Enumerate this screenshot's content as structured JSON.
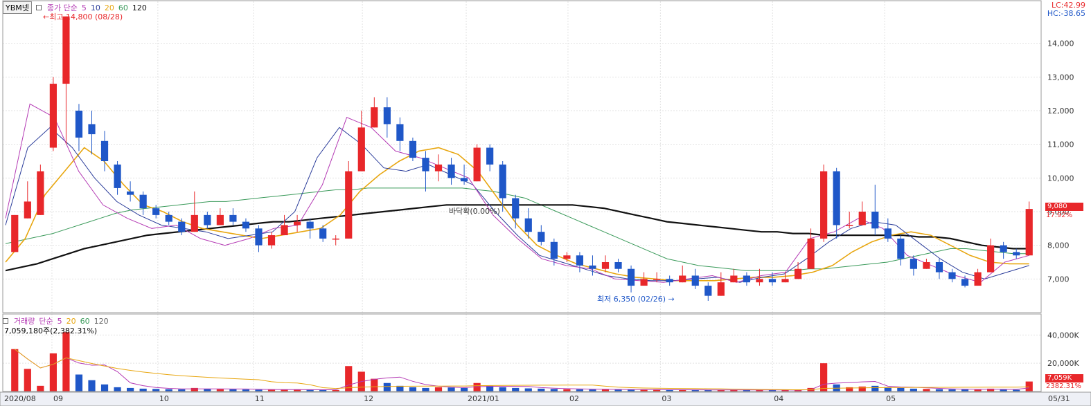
{
  "header": {
    "symbol": "YBM넷",
    "indicator_label": "종가 단순",
    "ma_periods": [
      "5",
      "10",
      "20",
      "60",
      "120"
    ],
    "lc": "LC:42.99",
    "hc": "HC:-38.65",
    "high_note": "←최고 14,800 (08/28)",
    "low_note": "최저 6,350 (02/26)",
    "low_arrow": "→",
    "mid_note": "바닥확(0.00%)"
  },
  "volume_header": {
    "label": "거래량",
    "indicator_label": "단순",
    "ma_periods": [
      "5",
      "20",
      "60",
      "120"
    ],
    "value_text": "7,059,180주(2,382.31%)"
  },
  "colors": {
    "up": "#e8272a",
    "down": "#1f57c8",
    "ma5": "#b43ab4",
    "ma10": "#2a3c9a",
    "ma20": "#e8a60f",
    "ma60": "#3a9a5a",
    "ma120": "#111111",
    "grid": "#e2e2e2",
    "price_box": "#e8272a"
  },
  "price_badges": {
    "close": "9,080",
    "change": "17.92%"
  },
  "volume_badges": {
    "value": "7,059K",
    "pct": "2382.31%"
  },
  "chart_data": {
    "type": "candlestick",
    "x_tick_labels": [
      "2020/08",
      "09",
      "10",
      "11",
      "12",
      "2021/01",
      "02",
      "03",
      "04",
      "05",
      "05/31"
    ],
    "y_ticks": [
      7000,
      8000,
      9000,
      10000,
      11000,
      12000,
      13000,
      14000
    ],
    "y_tick_labels": [
      "7,000",
      "8,000",
      "9,000",
      "10,000",
      "11,000",
      "12,000",
      "13,000",
      "14,000"
    ],
    "ylim": [
      6000,
      15000
    ],
    "volume_y_ticks": [
      20000,
      40000
    ],
    "volume_y_tick_labels": [
      "20,000K",
      "40,000K"
    ],
    "volume_ylim": [
      0,
      48000
    ],
    "high_point": {
      "date": "08/28",
      "value": 14800
    },
    "low_point": {
      "date": "02/26",
      "value": 6350
    },
    "last_close": 9080,
    "last_volume_k": 7059,
    "ma120_series": [
      7250,
      7350,
      7450,
      7600,
      7750,
      7900,
      8000,
      8100,
      8200,
      8300,
      8350,
      8400,
      8450,
      8500,
      8550,
      8600,
      8650,
      8700,
      8700,
      8750,
      8800,
      8850,
      8900,
      8950,
      9000,
      9050,
      9100,
      9150,
      9200,
      9200,
      9200,
      9200,
      9200,
      9200,
      9200,
      9200,
      9200,
      9150,
      9100,
      9000,
      8900,
      8800,
      8700,
      8650,
      8600,
      8550,
      8500,
      8450,
      8400,
      8400,
      8350,
      8350,
      8300,
      8300,
      8300,
      8300,
      8300,
      8300,
      8250,
      8250,
      8200,
      8100,
      8000,
      7950,
      7900,
      7900
    ],
    "ma60_series": [
      8050,
      8150,
      8250,
      8350,
      8500,
      8650,
      8800,
      8950,
      9050,
      9100,
      9150,
      9200,
      9250,
      9300,
      9300,
      9350,
      9400,
      9450,
      9500,
      9550,
      9600,
      9650,
      9650,
      9700,
      9700,
      9700,
      9700,
      9700,
      9700,
      9700,
      9650,
      9600,
      9500,
      9400,
      9200,
      9000,
      8800,
      8600,
      8400,
      8200,
      8000,
      7800,
      7600,
      7500,
      7400,
      7350,
      7300,
      7250,
      7250,
      7250,
      7250,
      7300,
      7300,
      7350,
      7400,
      7450,
      7500,
      7600,
      7700,
      7800,
      7900,
      7900,
      7850,
      7800,
      7750,
      7750
    ],
    "ma20_series": [
      7500,
      8200,
      9500,
      10200,
      10900,
      10500,
      9800,
      9200,
      9000,
      8700,
      8500,
      8400,
      8300,
      8200,
      8300,
      8400,
      8500,
      8900,
      9600,
      10100,
      10500,
      10800,
      10900,
      10700,
      10200,
      9400,
      8600,
      8000,
      7700,
      7450,
      7300,
      7150,
      7050,
      7000,
      6950,
      6950,
      6950,
      7000,
      7050,
      7050,
      7100,
      7200,
      7400,
      7800,
      8100,
      8300,
      8400,
      8300,
      8000,
      7700,
      7500,
      7450,
      7450
    ],
    "ma10_series": [
      8600,
      10900,
      11500,
      10900,
      10000,
      9300,
      8900,
      8600,
      8500,
      8400,
      8200,
      8300,
      8400,
      9000,
      10600,
      11500,
      11000,
      10300,
      10200,
      10400,
      10100,
      9800,
      9000,
      8300,
      7700,
      7500,
      7300,
      7100,
      7000,
      6950,
      6950,
      7000,
      7050,
      6900,
      7050,
      7150,
      7600,
      8100,
      8500,
      8700,
      8600,
      8100,
      7600,
      7200,
      7000,
      7200,
      7400
    ],
    "ma5_series": [
      8800,
      12200,
      11800,
      10200,
      9200,
      8800,
      8500,
      8600,
      8200,
      8000,
      8200,
      8500,
      8600,
      9800,
      11800,
      11500,
      10800,
      10600,
      10300,
      10000,
      8900,
      8200,
      7600,
      7400,
      7300,
      7000,
      6950,
      6900,
      7000,
      7100,
      6900,
      7100,
      7200,
      8200,
      8400,
      8800,
      8500,
      7700,
      7400,
      7100,
      6900,
      7500,
      7700
    ],
    "candles": [
      [
        7.8,
        8.9,
        8.2,
        8.9
      ],
      [
        8.8,
        9.3,
        8.8,
        9.9
      ],
      [
        8.9,
        10.2,
        8.9,
        10.4
      ],
      [
        10.9,
        12.8,
        10.8,
        13.0
      ],
      [
        12.8,
        14.8,
        11.0,
        14.8
      ],
      [
        12.0,
        11.2,
        10.8,
        12.2
      ],
      [
        11.6,
        11.3,
        10.7,
        12.0
      ],
      [
        11.1,
        10.5,
        10.2,
        11.4
      ],
      [
        10.4,
        9.7,
        9.5,
        10.5
      ],
      [
        9.6,
        9.5,
        9.3,
        9.9
      ],
      [
        9.5,
        9.1,
        8.9,
        9.6
      ],
      [
        9.1,
        8.9,
        8.8,
        9.2
      ],
      [
        8.9,
        8.7,
        8.6,
        9.0
      ],
      [
        8.7,
        8.4,
        8.3,
        8.8
      ],
      [
        8.4,
        8.9,
        8.4,
        9.6
      ],
      [
        8.9,
        8.6,
        8.5,
        9.0
      ],
      [
        8.6,
        8.9,
        8.6,
        9.1
      ],
      [
        8.9,
        8.7,
        8.6,
        9.1
      ],
      [
        8.7,
        8.5,
        8.4,
        8.8
      ],
      [
        8.5,
        8.0,
        7.8,
        8.6
      ],
      [
        8.0,
        8.3,
        7.9,
        8.4
      ],
      [
        8.3,
        8.6,
        8.3,
        8.9
      ],
      [
        8.6,
        8.7,
        8.4,
        8.9
      ],
      [
        8.7,
        8.5,
        8.2,
        8.8
      ],
      [
        8.5,
        8.2,
        8.1,
        8.6
      ],
      [
        8.2,
        8.2,
        8.0,
        8.3
      ],
      [
        8.2,
        10.2,
        8.2,
        10.5
      ],
      [
        10.2,
        11.5,
        10.2,
        12.0
      ],
      [
        11.5,
        12.1,
        11.5,
        12.4
      ],
      [
        12.1,
        11.6,
        11.2,
        12.4
      ],
      [
        11.6,
        11.1,
        10.8,
        11.8
      ],
      [
        11.1,
        10.6,
        10.5,
        11.2
      ],
      [
        10.6,
        10.2,
        9.6,
        10.8
      ],
      [
        10.2,
        10.4,
        9.9,
        10.7
      ],
      [
        10.4,
        10.0,
        9.8,
        10.6
      ],
      [
        10.0,
        9.9,
        9.8,
        10.4
      ],
      [
        9.9,
        10.9,
        9.9,
        11.0
      ],
      [
        10.9,
        10.4,
        10.2,
        11.0
      ],
      [
        10.4,
        9.4,
        9.0,
        10.5
      ],
      [
        9.4,
        8.8,
        8.5,
        9.5
      ],
      [
        8.8,
        8.4,
        8.2,
        9.1
      ],
      [
        8.4,
        8.1,
        8.0,
        8.6
      ],
      [
        8.1,
        7.6,
        7.4,
        8.2
      ],
      [
        7.6,
        7.7,
        7.5,
        7.8
      ],
      [
        7.7,
        7.4,
        7.2,
        7.8
      ],
      [
        7.4,
        7.3,
        7.1,
        7.7
      ],
      [
        7.3,
        7.5,
        7.2,
        7.7
      ],
      [
        7.5,
        7.3,
        7.2,
        7.6
      ],
      [
        7.3,
        6.8,
        6.6,
        7.4
      ],
      [
        6.8,
        7.0,
        6.8,
        7.2
      ],
      [
        7.0,
        7.0,
        6.9,
        7.2
      ],
      [
        7.0,
        6.9,
        6.8,
        7.1
      ],
      [
        6.9,
        7.1,
        6.9,
        7.4
      ],
      [
        7.1,
        6.8,
        6.7,
        7.3
      ],
      [
        6.8,
        6.5,
        6.35,
        6.9
      ],
      [
        6.5,
        6.9,
        6.5,
        7.2
      ],
      [
        6.9,
        7.1,
        6.9,
        7.3
      ],
      [
        7.1,
        6.9,
        6.8,
        7.2
      ],
      [
        6.9,
        7.0,
        6.8,
        7.3
      ],
      [
        7.0,
        6.9,
        6.8,
        7.2
      ],
      [
        6.9,
        7.0,
        6.9,
        7.2
      ],
      [
        7.0,
        7.3,
        7.0,
        7.5
      ],
      [
        7.3,
        8.2,
        7.3,
        8.5
      ],
      [
        8.2,
        10.2,
        8.1,
        10.4
      ],
      [
        10.2,
        8.6,
        8.2,
        10.3
      ],
      [
        8.6,
        8.6,
        8.5,
        9.0
      ],
      [
        8.6,
        9.0,
        8.6,
        9.3
      ],
      [
        9.0,
        8.5,
        8.3,
        9.8
      ],
      [
        8.5,
        8.2,
        8.1,
        8.8
      ],
      [
        8.2,
        7.6,
        7.4,
        8.3
      ],
      [
        7.6,
        7.3,
        7.1,
        7.7
      ],
      [
        7.3,
        7.5,
        7.3,
        7.6
      ],
      [
        7.5,
        7.2,
        7.0,
        7.6
      ],
      [
        7.2,
        7.0,
        6.9,
        7.3
      ],
      [
        7.0,
        6.8,
        6.75,
        7.1
      ],
      [
        6.8,
        7.2,
        6.8,
        7.3
      ],
      [
        7.2,
        8.0,
        7.2,
        8.2
      ],
      [
        8.0,
        7.8,
        7.6,
        8.1
      ],
      [
        7.8,
        7.7,
        7.6,
        7.9
      ],
      [
        7.7,
        9.08,
        7.7,
        9.3
      ]
    ],
    "volumes_k": [
      30000,
      16000,
      4000,
      27000,
      42000,
      12000,
      8000,
      5000,
      3000,
      2500,
      2000,
      1800,
      1600,
      1500,
      2500,
      1800,
      1600,
      1500,
      1400,
      1300,
      1200,
      1300,
      1400,
      1200,
      1100,
      1000,
      18000,
      14000,
      9000,
      6000,
      4000,
      3000,
      2500,
      3000,
      2800,
      2500,
      6000,
      4000,
      3000,
      2500,
      2200,
      2000,
      1800,
      1600,
      1500,
      1400,
      1500,
      1400,
      1300,
      1200,
      1200,
      1100,
      1200,
      1100,
      1000,
      1100,
      1200,
      1100,
      1000,
      1000,
      1000,
      1100,
      2500,
      20000,
      5000,
      3000,
      3500,
      4000,
      3000,
      2500,
      2000,
      1800,
      1600,
      1500,
      1400,
      1300,
      2000,
      1500,
      1200,
      7059
    ]
  }
}
